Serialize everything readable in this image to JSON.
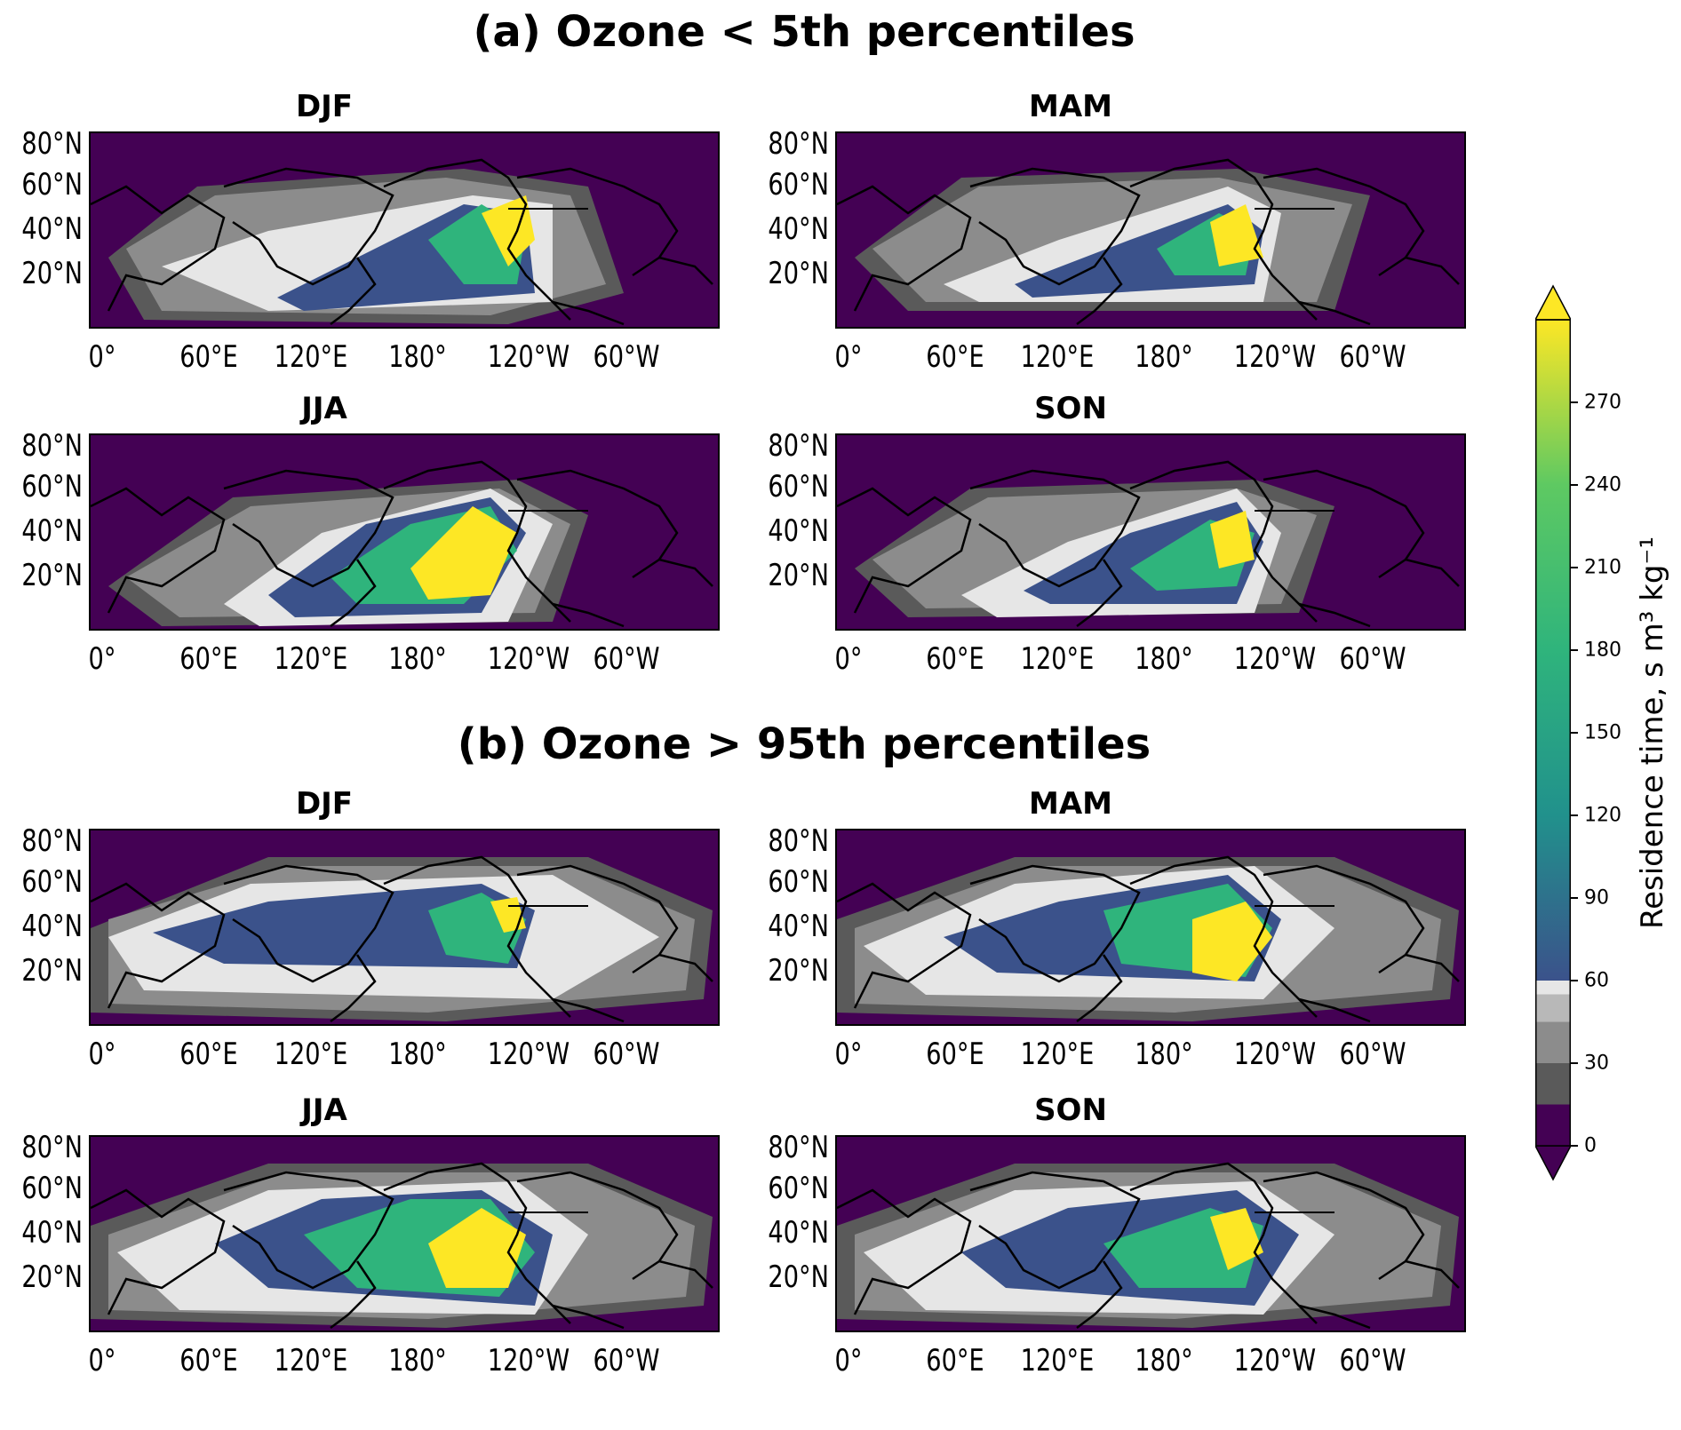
{
  "figure": {
    "section_a_title": "(a) Ozone < 5th percentiles",
    "section_b_title": "(b) Ozone > 95th percentiles"
  },
  "axes": {
    "lat_ticks": [
      "80°N",
      "60°N",
      "40°N",
      "20°N"
    ],
    "lon_ticks": [
      "0°",
      "60°E",
      "120°E",
      "180°",
      "120°W",
      "60°W"
    ]
  },
  "panels": [
    {
      "section": "a",
      "season": "DJF",
      "pattern": "low_djf"
    },
    {
      "section": "a",
      "season": "MAM",
      "pattern": "low_mam"
    },
    {
      "section": "a",
      "season": "JJA",
      "pattern": "low_jja"
    },
    {
      "section": "a",
      "season": "SON",
      "pattern": "low_son"
    },
    {
      "section": "b",
      "season": "DJF",
      "pattern": "high_djf"
    },
    {
      "section": "b",
      "season": "MAM",
      "pattern": "high_mam"
    },
    {
      "section": "b",
      "season": "JJA",
      "pattern": "high_jja"
    },
    {
      "section": "b",
      "season": "SON",
      "pattern": "high_son"
    }
  ],
  "colorbar": {
    "label": "Residence time, s m³ kg⁻¹",
    "ticks": [
      "0",
      "30",
      "60",
      "90",
      "120",
      "150",
      "180",
      "210",
      "240",
      "270"
    ],
    "range": [
      0,
      300
    ],
    "extend": "both",
    "colors": {
      "c0": "#440154",
      "c15": "#5a5a5a",
      "c30": "#8c8c8c",
      "c45": "#b8b8b8",
      "c55": "#e6e6e6",
      "c60": "#3b528b",
      "c120": "#21918c",
      "c180": "#2fb47c",
      "c240": "#5ec962",
      "c270": "#fde725"
    }
  }
}
